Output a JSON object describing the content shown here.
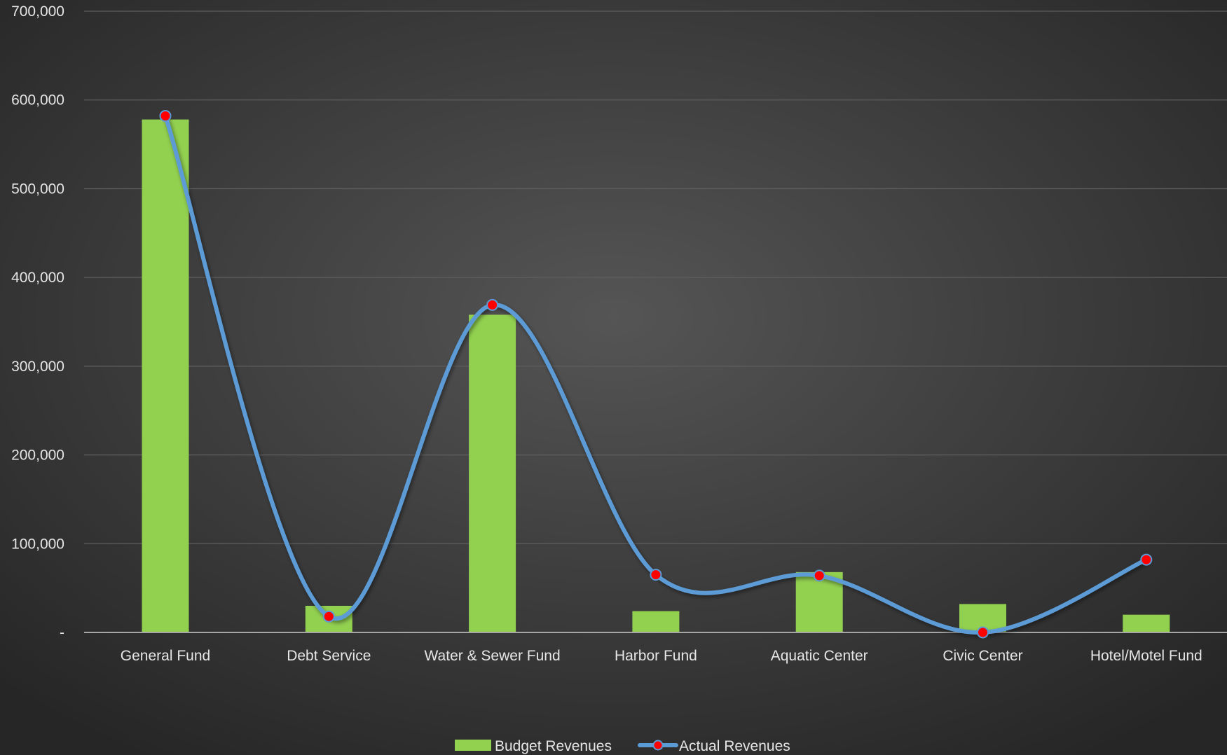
{
  "chart_data": {
    "type": "bar",
    "categories": [
      "General Fund",
      "Debt Service",
      "Water & Sewer Fund",
      "Harbor Fund",
      "Aquatic Center",
      "Civic Center",
      "Hotel/Motel Fund"
    ],
    "series": [
      {
        "name": "Budget Revenues",
        "type": "bar",
        "color": "#92d050",
        "values": [
          578000,
          30000,
          358000,
          24000,
          68000,
          32000,
          20000
        ]
      },
      {
        "name": "Actual Revenues",
        "type": "line",
        "smooth": true,
        "color": "#5b9bd5",
        "marker_color": "#ff0000",
        "values": [
          582000,
          18000,
          369000,
          65000,
          64000,
          0,
          82000
        ]
      }
    ],
    "ylim": [
      0,
      700000
    ],
    "yticks": [
      0,
      100000,
      200000,
      300000,
      400000,
      500000,
      600000,
      700000
    ],
    "ytick_labels": [
      "-",
      "100,000",
      "200,000",
      "300,000",
      "400,000",
      "500,000",
      "600,000",
      "700,000"
    ],
    "grid": true,
    "legend_position": "bottom",
    "title": "",
    "xlabel": "",
    "ylabel": "",
    "colors": {
      "background_center": "#555555",
      "background_edge": "#262626",
      "text": "#e6e6e6",
      "grid": "#5e5e5e",
      "axis": "#a6a6a6"
    }
  }
}
